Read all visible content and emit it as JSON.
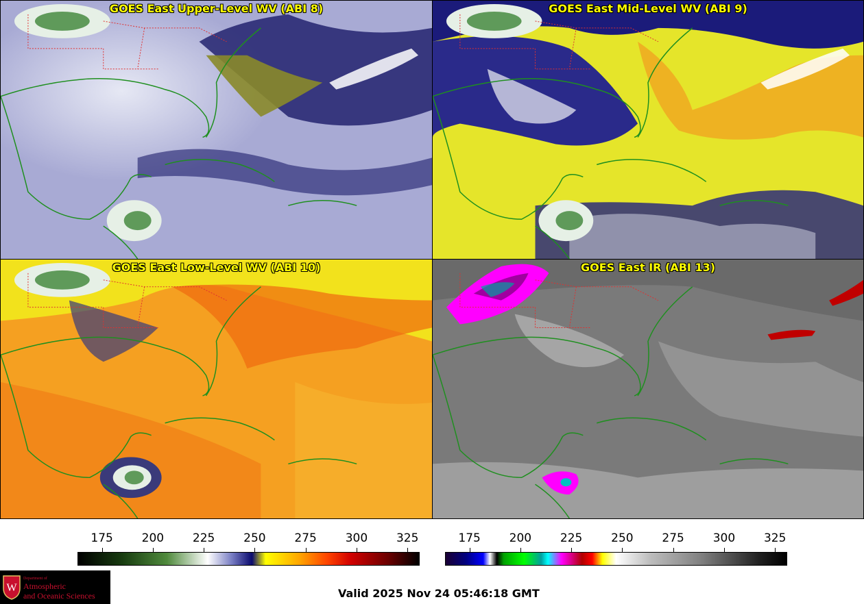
{
  "panels": [
    {
      "title": "GOES East Upper-Level WV (ABI 8)",
      "palette": "wv-upper"
    },
    {
      "title": "GOES East Mid-Level WV (ABI 9)",
      "palette": "wv-mid"
    },
    {
      "title": "GOES East Low-Level WV (ABI 10)",
      "palette": "wv-low"
    },
    {
      "title": "GOES East IR (ABI 13)",
      "palette": "ir"
    }
  ],
  "colorbars": {
    "wv": {
      "ticks": [
        "175",
        "200",
        "225",
        "250",
        "275",
        "300",
        "325"
      ],
      "min": 163,
      "max": 331
    },
    "ir": {
      "ticks": [
        "175",
        "200",
        "225",
        "250",
        "275",
        "300",
        "325"
      ],
      "min": 163,
      "max": 331
    }
  },
  "logo": {
    "dept": "Department of",
    "line1": "Atmospheric",
    "line2": "and Oceanic Sciences",
    "crest_letter": "W"
  },
  "valid_time": "Valid 2025 Nov 24 05:46:18 GMT",
  "colors": {
    "title_text": "#ffff00",
    "coastline": "#1f8f1f",
    "state_borders": "#e03030",
    "logo_red": "#c8102e"
  }
}
